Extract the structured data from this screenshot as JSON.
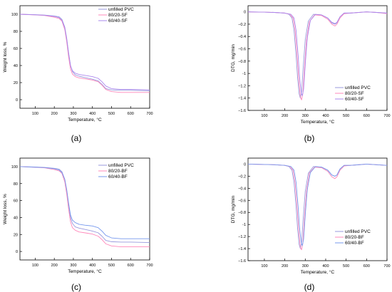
{
  "chart_data": [
    {
      "id": "a",
      "type": "line",
      "caption": "(a)",
      "xlabel": "Temperature, °C",
      "ylabel": "Weight loss, %",
      "xlim": [
        20,
        700
      ],
      "ylim": [
        -10,
        110
      ],
      "xticks": [
        100,
        200,
        300,
        400,
        500,
        600,
        700
      ],
      "yticks": [
        0,
        20,
        40,
        60,
        80,
        100
      ],
      "grid": false,
      "legend_position": "top-right",
      "series": [
        {
          "name": "unfilled PVC",
          "color": "#9999dd",
          "x": [
            20,
            100,
            150,
            200,
            225,
            240,
            255,
            265,
            275,
            285,
            295,
            310,
            330,
            360,
            400,
            430,
            450,
            470,
            500,
            550,
            600,
            700
          ],
          "y": [
            100,
            99.5,
            99,
            98,
            97,
            94,
            85,
            72,
            55,
            40,
            33,
            29,
            27.5,
            26,
            24,
            22,
            18,
            13,
            11.5,
            11,
            11,
            10.5
          ]
        },
        {
          "name": "80/20-SF",
          "color": "#ff88bb",
          "x": [
            20,
            100,
            150,
            200,
            225,
            240,
            255,
            265,
            275,
            285,
            295,
            310,
            330,
            360,
            400,
            430,
            450,
            470,
            500,
            550,
            600,
            700
          ],
          "y": [
            100,
            99.2,
            98.5,
            96.5,
            95,
            92,
            82,
            68,
            50,
            36,
            30,
            27,
            25.5,
            24.5,
            23,
            21,
            17,
            12,
            9.5,
            8.5,
            8.5,
            8.5
          ]
        },
        {
          "name": "60/40-SF",
          "color": "#aa88ee",
          "x": [
            20,
            100,
            150,
            200,
            225,
            240,
            255,
            265,
            275,
            285,
            295,
            310,
            330,
            360,
            400,
            430,
            450,
            470,
            500,
            550,
            600,
            700
          ],
          "y": [
            100,
            99.3,
            98.8,
            97.5,
            96,
            93,
            84,
            71,
            54,
            40,
            34,
            31,
            29.5,
            28.5,
            27,
            25,
            21,
            16,
            13,
            12,
            12,
            11.5
          ]
        }
      ]
    },
    {
      "id": "b",
      "type": "line",
      "caption": "(b)",
      "xlabel": "Temperatura, °C",
      "ylabel": "DTG, mg/min",
      "xlim": [
        20,
        700
      ],
      "ylim": [
        -1.6,
        0.1
      ],
      "xticks": [
        100,
        200,
        300,
        400,
        500,
        600,
        700
      ],
      "yticks": [
        0.0,
        -0.2,
        -0.4,
        -0.6,
        -0.8,
        -1.0,
        -1.2,
        -1.4,
        -1.6
      ],
      "grid": false,
      "legend_position": "bottom-right",
      "series": [
        {
          "name": "unfilled PVC",
          "color": "#9999dd",
          "x": [
            20,
            100,
            150,
            200,
            220,
            235,
            245,
            255,
            262,
            270,
            276,
            282,
            290,
            300,
            315,
            340,
            380,
            410,
            430,
            445,
            455,
            470,
            490,
            520,
            600,
            650,
            700
          ],
          "y": [
            0,
            -0.005,
            -0.01,
            -0.02,
            -0.04,
            -0.1,
            -0.3,
            -0.7,
            -1.05,
            -1.33,
            -1.4,
            -1.3,
            -0.9,
            -0.45,
            -0.15,
            -0.04,
            -0.05,
            -0.1,
            -0.18,
            -0.2,
            -0.18,
            -0.08,
            -0.02,
            -0.02,
            0.0,
            -0.01,
            -0.02
          ]
        },
        {
          "name": "80/20-SF",
          "color": "#ff88bb",
          "x": [
            20,
            100,
            150,
            200,
            225,
            240,
            250,
            260,
            268,
            276,
            282,
            288,
            296,
            306,
            320,
            345,
            380,
            410,
            430,
            445,
            455,
            470,
            490,
            520,
            600,
            650,
            700
          ],
          "y": [
            0,
            -0.005,
            -0.01,
            -0.02,
            -0.04,
            -0.1,
            -0.3,
            -0.7,
            -1.1,
            -1.38,
            -1.43,
            -1.33,
            -0.92,
            -0.46,
            -0.16,
            -0.05,
            -0.06,
            -0.12,
            -0.2,
            -0.23,
            -0.2,
            -0.1,
            -0.03,
            -0.02,
            0.0,
            -0.01,
            -0.03
          ]
        },
        {
          "name": "60/40-SF",
          "color": "#aa88ee",
          "x": [
            20,
            100,
            150,
            200,
            230,
            245,
            255,
            265,
            272,
            280,
            286,
            292,
            300,
            310,
            325,
            350,
            380,
            410,
            430,
            445,
            455,
            470,
            490,
            520,
            600,
            650,
            700
          ],
          "y": [
            0,
            -0.005,
            -0.01,
            -0.02,
            -0.04,
            -0.1,
            -0.3,
            -0.7,
            -1.05,
            -1.32,
            -1.36,
            -1.25,
            -0.85,
            -0.42,
            -0.14,
            -0.04,
            -0.05,
            -0.1,
            -0.17,
            -0.19,
            -0.17,
            -0.08,
            -0.02,
            -0.02,
            0.0,
            -0.01,
            -0.02
          ]
        }
      ]
    },
    {
      "id": "c",
      "type": "line",
      "caption": "(c)",
      "xlabel": "Temperature, °C",
      "ylabel": "Weight loss, %",
      "xlim": [
        20,
        700
      ],
      "ylim": [
        -10,
        110
      ],
      "xticks": [
        100,
        200,
        300,
        400,
        500,
        600,
        700
      ],
      "yticks": [
        0,
        20,
        40,
        60,
        80,
        100
      ],
      "grid": false,
      "legend_position": "top-right",
      "series": [
        {
          "name": "unfilled PVC",
          "color": "#9999dd",
          "x": [
            20,
            100,
            150,
            200,
            225,
            240,
            255,
            265,
            275,
            285,
            295,
            310,
            330,
            360,
            400,
            430,
            450,
            470,
            500,
            550,
            600,
            700
          ],
          "y": [
            100,
            99.5,
            99,
            98,
            97,
            94,
            85,
            72,
            55,
            40,
            33,
            29,
            27.5,
            26,
            24,
            22,
            18,
            13,
            11.5,
            11,
            11,
            10.5
          ]
        },
        {
          "name": "80/20-BF",
          "color": "#ff88bb",
          "x": [
            20,
            100,
            150,
            200,
            225,
            240,
            255,
            265,
            275,
            285,
            295,
            310,
            330,
            360,
            400,
            430,
            450,
            470,
            500,
            550,
            600,
            700
          ],
          "y": [
            100,
            99.2,
            98.5,
            96.5,
            95,
            92,
            82,
            68,
            50,
            35,
            28,
            25,
            23,
            22,
            20.5,
            18,
            14,
            9,
            6.5,
            5.5,
            5.5,
            5.5
          ]
        },
        {
          "name": "60/40-BF",
          "color": "#7799ee",
          "x": [
            20,
            100,
            150,
            200,
            225,
            240,
            255,
            265,
            275,
            285,
            295,
            310,
            330,
            360,
            400,
            430,
            450,
            470,
            500,
            550,
            600,
            700
          ],
          "y": [
            100,
            99.3,
            98.8,
            97.5,
            96,
            93,
            85,
            73,
            57,
            43,
            37,
            34,
            32,
            31,
            30,
            28,
            24,
            19,
            16,
            15,
            15,
            15
          ]
        }
      ]
    },
    {
      "id": "d",
      "type": "line",
      "caption": "(d)",
      "xlabel": "Temperature, °C",
      "ylabel": "DTG, mg/min",
      "xlim": [
        20,
        700
      ],
      "ylim": [
        -1.6,
        0.1
      ],
      "xticks": [
        100,
        200,
        300,
        400,
        500,
        600,
        700
      ],
      "yticks": [
        0.0,
        -0.2,
        -0.4,
        -0.6,
        -0.8,
        -1.0,
        -1.2,
        -1.4,
        -1.6
      ],
      "grid": false,
      "legend_position": "bottom-right",
      "series": [
        {
          "name": "unfilled PVC",
          "color": "#9999dd",
          "x": [
            20,
            100,
            150,
            200,
            220,
            235,
            245,
            255,
            262,
            270,
            276,
            282,
            290,
            300,
            315,
            340,
            380,
            410,
            430,
            445,
            455,
            470,
            490,
            520,
            600,
            650,
            700
          ],
          "y": [
            0,
            -0.005,
            -0.01,
            -0.02,
            -0.04,
            -0.1,
            -0.3,
            -0.7,
            -1.05,
            -1.33,
            -1.4,
            -1.3,
            -0.9,
            -0.45,
            -0.15,
            -0.04,
            -0.05,
            -0.1,
            -0.18,
            -0.2,
            -0.18,
            -0.08,
            -0.02,
            -0.02,
            0.0,
            -0.01,
            -0.02
          ]
        },
        {
          "name": "80/20-BF",
          "color": "#ff88bb",
          "x": [
            20,
            100,
            150,
            200,
            225,
            240,
            250,
            260,
            268,
            276,
            282,
            288,
            296,
            306,
            320,
            345,
            380,
            410,
            430,
            445,
            455,
            470,
            490,
            520,
            600,
            650,
            700
          ],
          "y": [
            0,
            -0.005,
            -0.01,
            -0.02,
            -0.04,
            -0.1,
            -0.3,
            -0.7,
            -1.1,
            -1.38,
            -1.42,
            -1.32,
            -0.9,
            -0.45,
            -0.15,
            -0.05,
            -0.06,
            -0.12,
            -0.21,
            -0.24,
            -0.21,
            -0.1,
            -0.03,
            -0.02,
            0.0,
            -0.01,
            -0.02
          ]
        },
        {
          "name": "60/40-BF",
          "color": "#7799ee",
          "x": [
            20,
            100,
            150,
            200,
            230,
            245,
            255,
            265,
            272,
            280,
            286,
            292,
            300,
            310,
            325,
            350,
            380,
            410,
            430,
            445,
            455,
            470,
            490,
            520,
            600,
            650,
            700
          ],
          "y": [
            0,
            -0.005,
            -0.01,
            -0.02,
            -0.04,
            -0.1,
            -0.3,
            -0.7,
            -1.05,
            -1.3,
            -1.35,
            -1.24,
            -0.84,
            -0.42,
            -0.14,
            -0.04,
            -0.05,
            -0.1,
            -0.18,
            -0.2,
            -0.18,
            -0.08,
            -0.02,
            -0.02,
            0.0,
            -0.01,
            -0.02
          ]
        }
      ]
    }
  ]
}
